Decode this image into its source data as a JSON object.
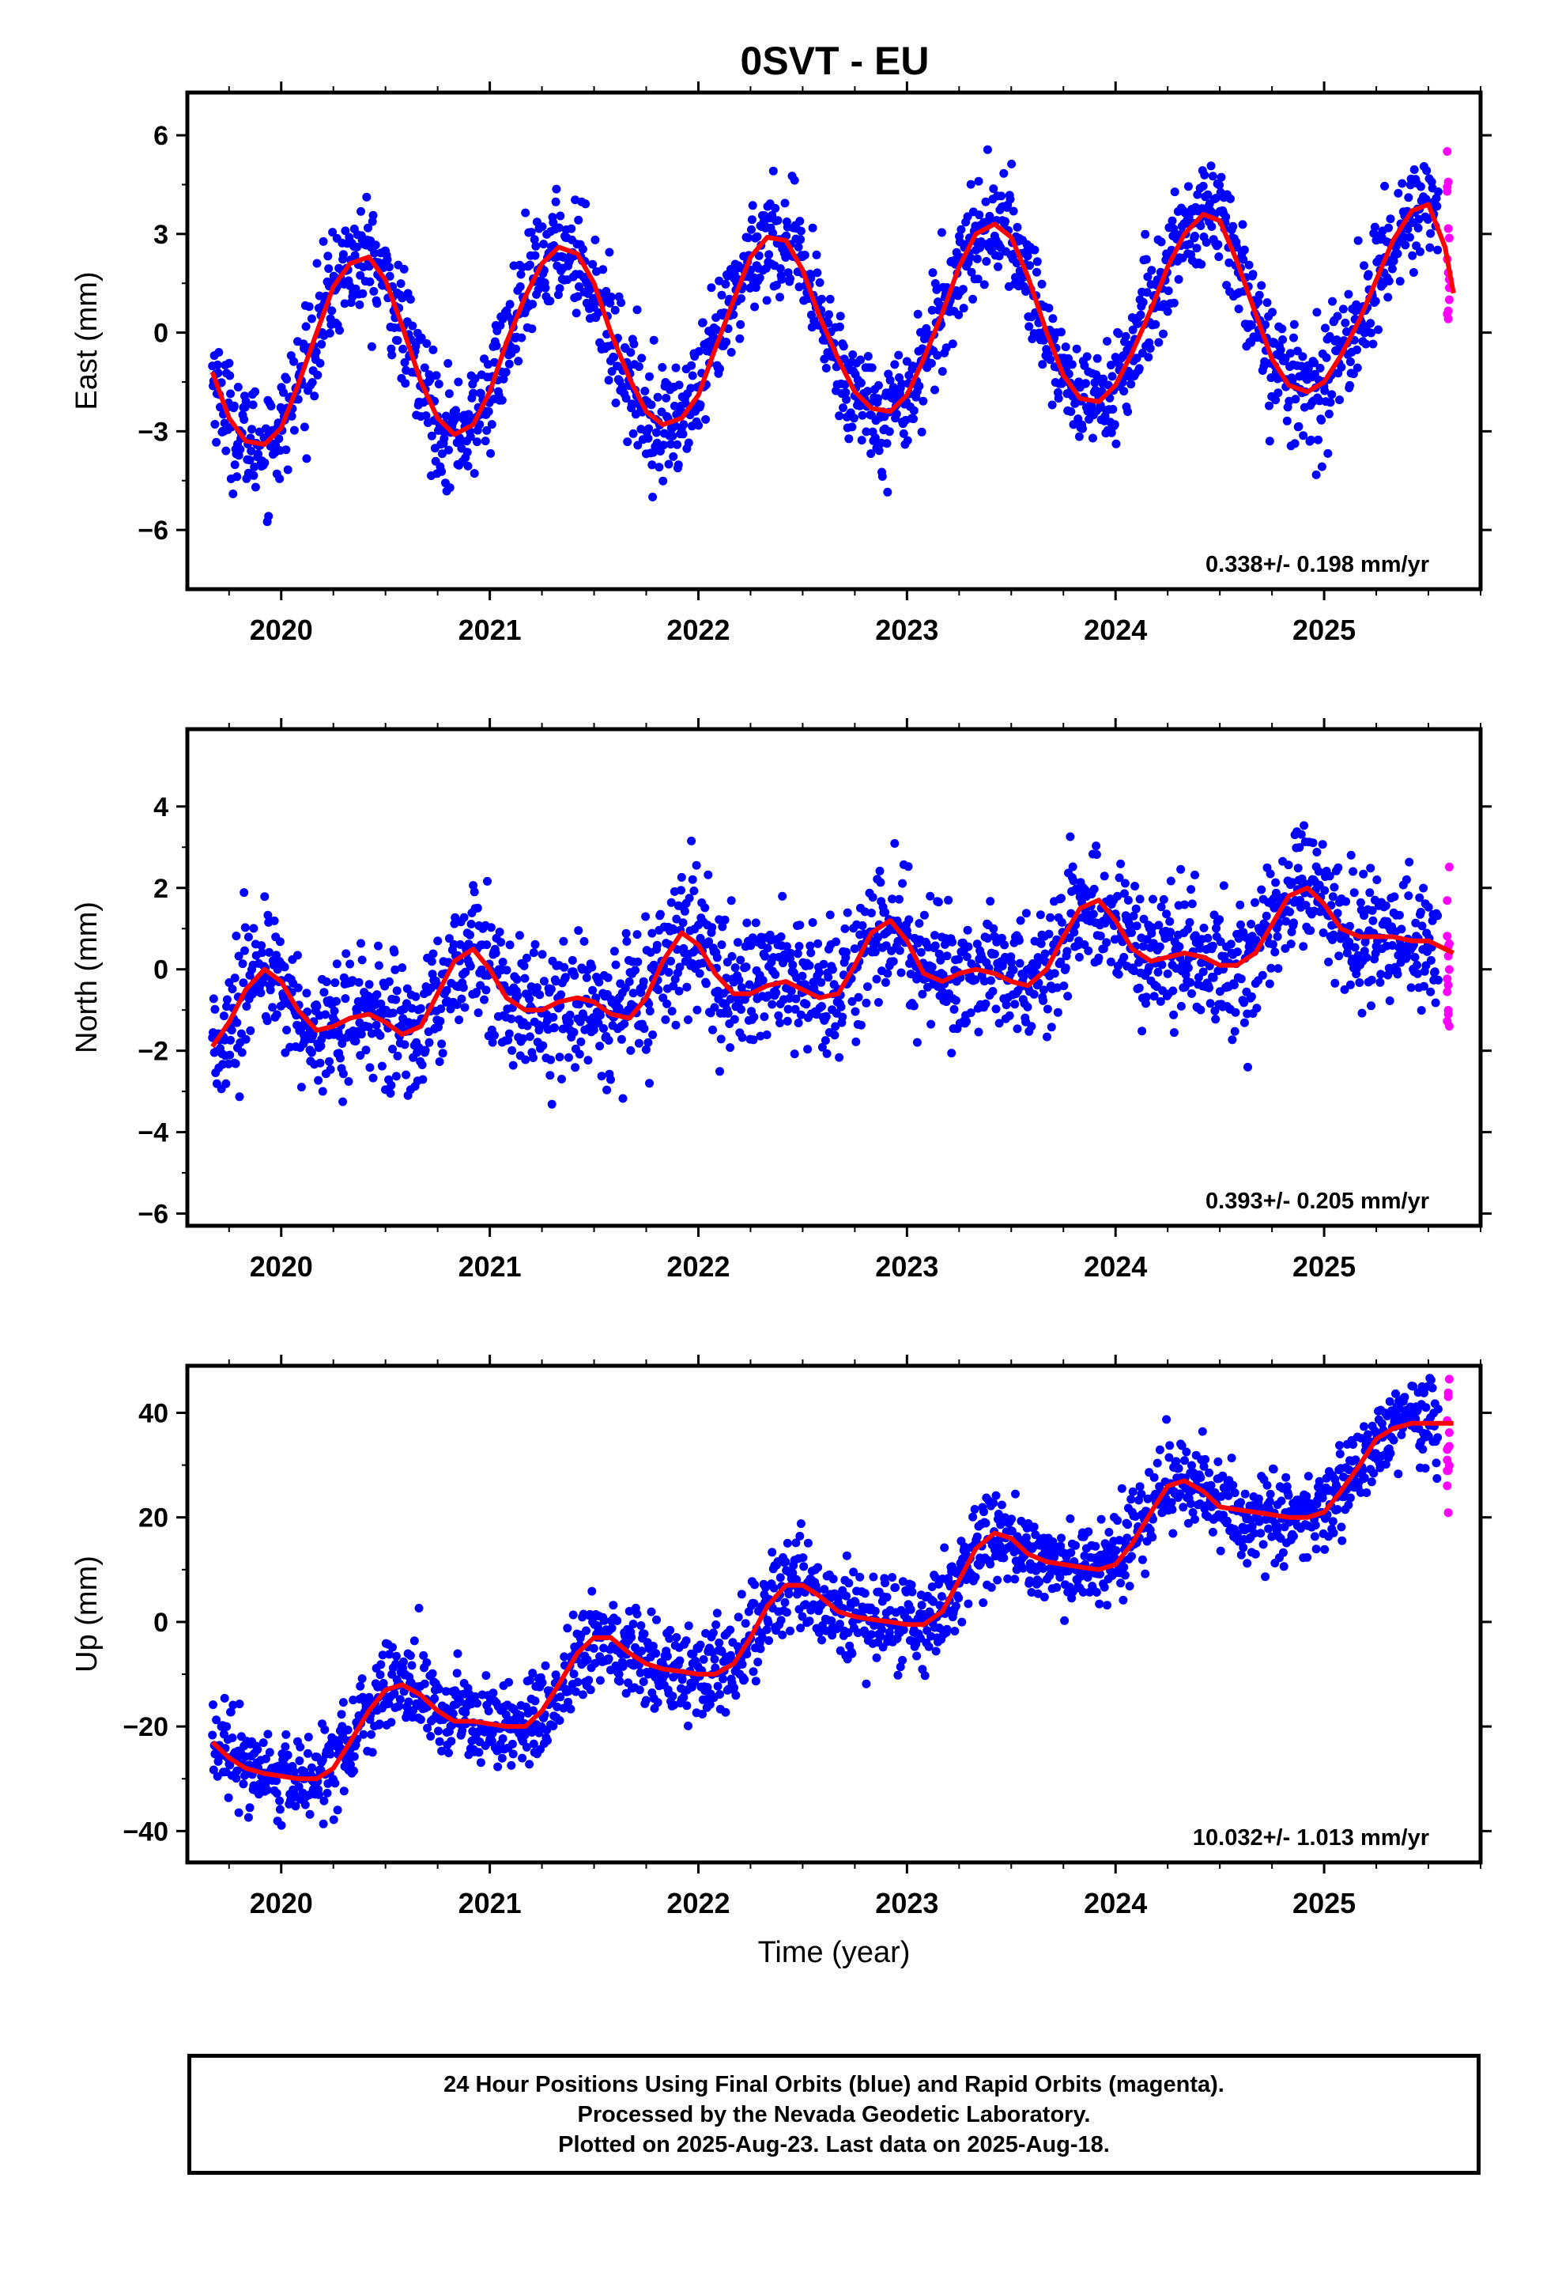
{
  "title": "0SVT - EU",
  "caption": [
    "24 Hour Positions Using Final Orbits (blue) and Rapid Orbits (magenta).",
    "Processed by the Nevada Geodetic Laboratory.",
    "Plotted on 2025-Aug-23. Last data on 2025-Aug-18."
  ],
  "colors": {
    "final": "#0000ff",
    "rapid": "#ff00ff",
    "model": "#ff0000",
    "axes": "#000000"
  },
  "chart_data": [
    {
      "type": "scatter",
      "panel": "east",
      "ylabel": "East (mm)",
      "xlabel": "",
      "xlim": [
        2019.55,
        2025.75
      ],
      "ylim": [
        -7.8,
        7.3
      ],
      "yticks": [
        -6,
        -3,
        0,
        3,
        6
      ],
      "yticklabels": [
        "−6",
        "−3",
        "0",
        "3",
        "6"
      ],
      "xticks": [
        2020,
        2021,
        2022,
        2023,
        2024,
        2025
      ],
      "xticklabels": [
        "2020",
        "2021",
        "2022",
        "2023",
        "2024",
        "2025"
      ],
      "rate": "0.338+/- 0.198 mm/yr",
      "grid": false,
      "model_curve": {
        "name": "model",
        "x": [
          2019.67,
          2019.75,
          2019.83,
          2019.92,
          2020.0,
          2020.08,
          2020.17,
          2020.25,
          2020.33,
          2020.42,
          2020.5,
          2020.58,
          2020.67,
          2020.75,
          2020.83,
          2020.92,
          2021.0,
          2021.08,
          2021.17,
          2021.25,
          2021.33,
          2021.42,
          2021.5,
          2021.58,
          2021.67,
          2021.75,
          2021.83,
          2021.92,
          2022.0,
          2022.08,
          2022.17,
          2022.25,
          2022.33,
          2022.42,
          2022.5,
          2022.58,
          2022.67,
          2022.75,
          2022.83,
          2022.92,
          2023.0,
          2023.08,
          2023.17,
          2023.25,
          2023.33,
          2023.42,
          2023.5,
          2023.58,
          2023.67,
          2023.75,
          2023.83,
          2023.92,
          2024.0,
          2024.08,
          2024.17,
          2024.25,
          2024.33,
          2024.42,
          2024.5,
          2024.58,
          2024.67,
          2024.75,
          2024.83,
          2024.92,
          2025.0,
          2025.08,
          2025.17,
          2025.25,
          2025.33,
          2025.42,
          2025.5,
          2025.58,
          2025.62
        ],
        "y": [
          -1.2,
          -2.6,
          -3.3,
          -3.4,
          -2.9,
          -1.6,
          0.0,
          1.4,
          2.1,
          2.3,
          1.6,
          0.2,
          -1.5,
          -2.6,
          -3.1,
          -2.8,
          -1.8,
          -0.3,
          1.1,
          2.1,
          2.6,
          2.4,
          1.5,
          0.0,
          -1.4,
          -2.4,
          -2.8,
          -2.6,
          -1.9,
          -0.5,
          1.0,
          2.3,
          2.9,
          2.8,
          1.9,
          0.5,
          -0.8,
          -1.8,
          -2.3,
          -2.4,
          -1.9,
          -0.8,
          0.6,
          2.0,
          3.0,
          3.3,
          2.9,
          1.7,
          0.0,
          -1.3,
          -2.0,
          -2.1,
          -1.6,
          -0.6,
          0.7,
          2.0,
          3.0,
          3.6,
          3.4,
          2.2,
          0.6,
          -0.8,
          -1.6,
          -1.8,
          -1.5,
          -0.7,
          0.4,
          1.6,
          2.8,
          3.7,
          3.9,
          2.6,
          1.2
        ]
      }
    },
    {
      "type": "scatter",
      "panel": "north",
      "ylabel": "North (mm)",
      "xlabel": "",
      "xlim": [
        2019.55,
        2025.75
      ],
      "ylim": [
        -6.3,
        5.9
      ],
      "yticks": [
        -6,
        -4,
        -2,
        0,
        2,
        4
      ],
      "yticklabels": [
        "−6",
        "−4",
        "−2",
        "0",
        "2",
        "4"
      ],
      "xticks": [
        2020,
        2021,
        2022,
        2023,
        2024,
        2025
      ],
      "xticklabels": [
        "2020",
        "2021",
        "2022",
        "2023",
        "2024",
        "2025"
      ],
      "rate": "0.393+/- 0.205 mm/yr",
      "grid": false,
      "model_curve": {
        "name": "model",
        "x": [
          2019.67,
          2019.75,
          2019.83,
          2019.92,
          2020.0,
          2020.08,
          2020.17,
          2020.25,
          2020.33,
          2020.42,
          2020.5,
          2020.58,
          2020.67,
          2020.75,
          2020.83,
          2020.92,
          2021.0,
          2021.08,
          2021.17,
          2021.25,
          2021.33,
          2021.42,
          2021.5,
          2021.58,
          2021.67,
          2021.75,
          2021.83,
          2021.92,
          2022.0,
          2022.08,
          2022.17,
          2022.25,
          2022.33,
          2022.42,
          2022.5,
          2022.58,
          2022.67,
          2022.75,
          2022.83,
          2022.92,
          2023.0,
          2023.08,
          2023.17,
          2023.25,
          2023.33,
          2023.42,
          2023.5,
          2023.58,
          2023.67,
          2023.75,
          2023.83,
          2023.92,
          2024.0,
          2024.08,
          2024.17,
          2024.25,
          2024.33,
          2024.42,
          2024.5,
          2024.58,
          2024.67,
          2024.75,
          2024.83,
          2024.92,
          2025.0,
          2025.08,
          2025.17,
          2025.25,
          2025.33,
          2025.42,
          2025.5,
          2025.58,
          2025.62
        ],
        "y": [
          -1.9,
          -1.3,
          -0.5,
          0.0,
          -0.3,
          -1.0,
          -1.5,
          -1.4,
          -1.2,
          -1.1,
          -1.3,
          -1.6,
          -1.4,
          -0.6,
          0.2,
          0.5,
          0.0,
          -0.7,
          -1.0,
          -1.0,
          -0.8,
          -0.7,
          -0.8,
          -1.1,
          -1.2,
          -0.7,
          0.2,
          0.9,
          0.6,
          -0.1,
          -0.6,
          -0.6,
          -0.4,
          -0.3,
          -0.5,
          -0.7,
          -0.6,
          0.1,
          0.9,
          1.2,
          0.7,
          -0.1,
          -0.3,
          -0.1,
          0.0,
          -0.1,
          -0.3,
          -0.4,
          0.0,
          0.8,
          1.5,
          1.7,
          1.2,
          0.5,
          0.2,
          0.3,
          0.4,
          0.3,
          0.1,
          0.1,
          0.4,
          1.1,
          1.8,
          2.0,
          1.6,
          1.0,
          0.8,
          0.8,
          0.8,
          0.7,
          0.7,
          0.5,
          0.4
        ]
      }
    },
    {
      "type": "scatter",
      "panel": "up",
      "ylabel": "Up (mm)",
      "xlabel": "Time (year)",
      "xlim": [
        2019.55,
        2025.75
      ],
      "ylim": [
        -46,
        49
      ],
      "yticks": [
        -40,
        -20,
        0,
        20,
        40
      ],
      "yticklabels": [
        "−40",
        "−20",
        "0",
        "20",
        "40"
      ],
      "xticks": [
        2020,
        2021,
        2022,
        2023,
        2024,
        2025
      ],
      "xticklabels": [
        "2020",
        "2021",
        "2022",
        "2023",
        "2024",
        "2025"
      ],
      "rate": "10.032+/- 1.013 mm/yr",
      "grid": false,
      "model_curve": {
        "name": "model",
        "x": [
          2019.67,
          2019.75,
          2019.83,
          2019.92,
          2020.0,
          2020.08,
          2020.17,
          2020.25,
          2020.33,
          2020.42,
          2020.5,
          2020.58,
          2020.67,
          2020.75,
          2020.83,
          2020.92,
          2021.0,
          2021.08,
          2021.17,
          2021.25,
          2021.33,
          2021.42,
          2021.5,
          2021.58,
          2021.67,
          2021.75,
          2021.83,
          2021.92,
          2022.0,
          2022.08,
          2022.17,
          2022.25,
          2022.33,
          2022.42,
          2022.5,
          2022.58,
          2022.67,
          2022.75,
          2022.83,
          2022.92,
          2023.0,
          2023.08,
          2023.17,
          2023.25,
          2023.33,
          2023.42,
          2023.5,
          2023.58,
          2023.67,
          2023.75,
          2023.83,
          2023.92,
          2024.0,
          2024.08,
          2024.17,
          2024.25,
          2024.33,
          2024.42,
          2024.5,
          2024.58,
          2024.67,
          2024.75,
          2024.83,
          2024.92,
          2025.0,
          2025.08,
          2025.17,
          2025.25,
          2025.33,
          2025.42,
          2025.5,
          2025.58,
          2025.62
        ],
        "y": [
          -23,
          -26,
          -28,
          -29,
          -29.5,
          -30,
          -30,
          -28,
          -23,
          -17,
          -13,
          -12,
          -14,
          -17,
          -19,
          -19,
          -19.5,
          -20,
          -20,
          -17,
          -12,
          -6,
          -3,
          -3,
          -6,
          -8,
          -9,
          -9.5,
          -10,
          -10,
          -8,
          -3,
          3,
          7,
          7,
          5,
          2,
          1,
          0.5,
          0,
          -0.5,
          -0.5,
          2,
          8,
          14,
          17,
          16,
          13,
          11.5,
          11,
          10.5,
          10,
          11,
          15,
          21,
          26,
          27,
          25,
          22,
          21.5,
          21,
          20.5,
          20,
          20,
          21,
          25,
          30,
          35,
          37,
          38,
          38,
          38,
          38
        ]
      }
    }
  ]
}
